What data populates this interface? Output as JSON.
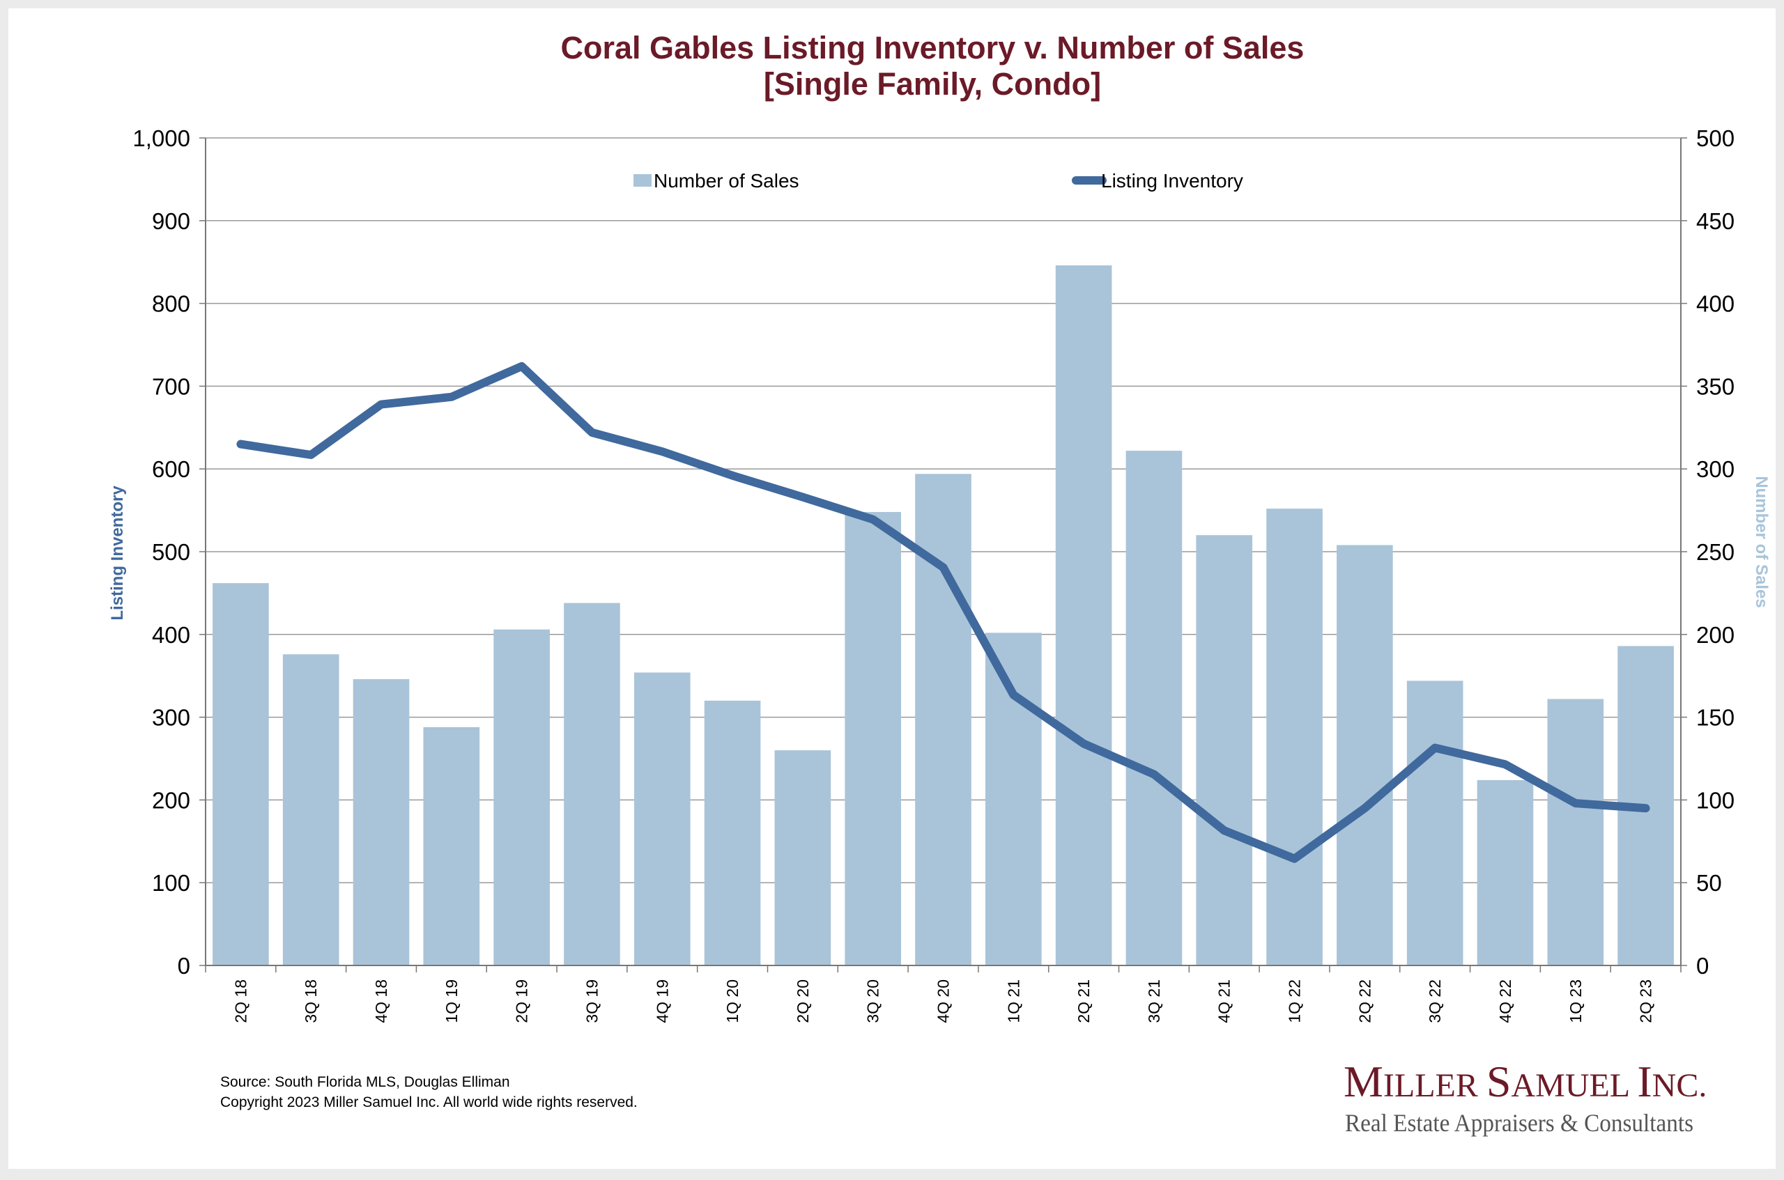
{
  "chart_data": {
    "type": "bar",
    "title": "Coral Gables Listing Inventory v. Number of Sales",
    "subtitle": "[Single Family, Condo]",
    "categories": [
      "2Q 18",
      "3Q 18",
      "4Q 18",
      "1Q 19",
      "2Q 19",
      "3Q 19",
      "4Q 19",
      "1Q 20",
      "2Q 20",
      "3Q 20",
      "4Q 20",
      "1Q 21",
      "2Q 21",
      "3Q 21",
      "4Q 21",
      "1Q 22",
      "2Q 22",
      "3Q 22",
      "4Q 22",
      "1Q 23",
      "2Q 23"
    ],
    "series": [
      {
        "name": "Number of Sales",
        "type": "bar",
        "axis": "right",
        "color": "#a9c4d9",
        "values": [
          231,
          188,
          173,
          144,
          203,
          219,
          177,
          160,
          130,
          274,
          297,
          201,
          423,
          311,
          260,
          276,
          254,
          172,
          112,
          161,
          193
        ]
      },
      {
        "name": "Listing Inventory",
        "type": "line",
        "axis": "left",
        "color": "#40699d",
        "values": [
          630,
          617,
          678,
          687,
          724,
          644,
          621,
          592,
          566,
          539,
          481,
          327,
          268,
          231,
          163,
          129,
          190,
          263,
          243,
          196,
          190
        ]
      }
    ],
    "ylabel_left": "Listing Inventory",
    "ylabel_right": "Number of Sales",
    "ylim_left": [
      0,
      1000
    ],
    "ylim_right": [
      0,
      500
    ],
    "yticks_left": [
      "0",
      "100",
      "200",
      "300",
      "400",
      "500",
      "600",
      "700",
      "800",
      "900",
      "1,000"
    ],
    "yticks_right": [
      "0",
      "50",
      "100",
      "150",
      "200",
      "250",
      "300",
      "350",
      "400",
      "450",
      "500"
    ],
    "grid": true,
    "legend_position": "top-center"
  },
  "footer": {
    "source_line1": "Source: South Florida MLS, Douglas Elliman",
    "source_line2": "Copyright 2023 Miller Samuel Inc.  All world wide rights reserved."
  },
  "brand": {
    "name": "Miller Samuel Inc.",
    "tagline": "Real Estate Appraisers & Consultants"
  }
}
